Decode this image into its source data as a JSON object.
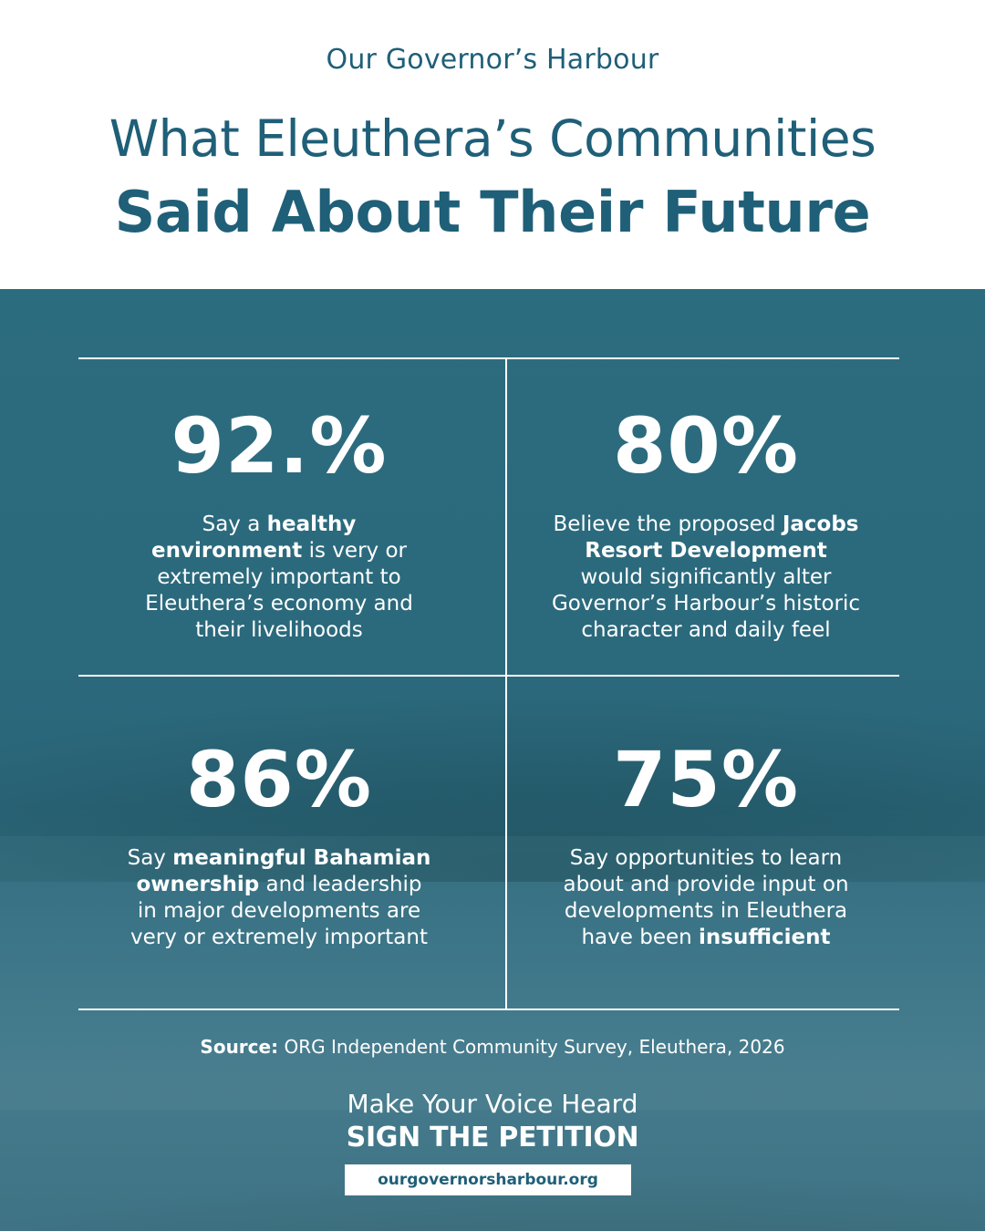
{
  "header": {
    "brand": "Our Governor’s Harbour",
    "title_line1": "What Eleuthera’s Communities",
    "title_line2": "Said About Their Future"
  },
  "stats": [
    {
      "value": "92.%",
      "parts": [
        {
          "text": "Say a ",
          "bold": false
        },
        {
          "text": "healthy environment",
          "bold": true
        },
        {
          "text": " is very or extremely important to Eleuthera’s economy and their livelihoods",
          "bold": false
        }
      ]
    },
    {
      "value": "80%",
      "parts": [
        {
          "text": "Believe the proposed ",
          "bold": false
        },
        {
          "text": "Jacobs Resort Development",
          "bold": true
        },
        {
          "text": " would significantly alter Governor’s Harbour’s historic character and daily feel",
          "bold": false
        }
      ]
    },
    {
      "value": "86%",
      "parts": [
        {
          "text": "Say ",
          "bold": false
        },
        {
          "text": "meaningful Bahamian ownership",
          "bold": true
        },
        {
          "text": " and leadership in major developments are very or extremely important",
          "bold": false
        }
      ]
    },
    {
      "value": "75%",
      "parts": [
        {
          "text": "Say opportunities to learn about and provide input on developments in Eleuthera have been ",
          "bold": false
        },
        {
          "text": "insufficient",
          "bold": true
        }
      ]
    }
  ],
  "source": {
    "label": "Source:",
    "text": " ORG Independent Community Survey, Eleuthera, 2026"
  },
  "cta": {
    "line1": "Make Your Voice Heard",
    "line2": "SIGN THE PETITION",
    "url": "ourgovernorsharbour.org"
  },
  "colors": {
    "brand": "#1f5f78",
    "panel": "#2c6c7f",
    "text_on_panel": "#ffffff"
  }
}
